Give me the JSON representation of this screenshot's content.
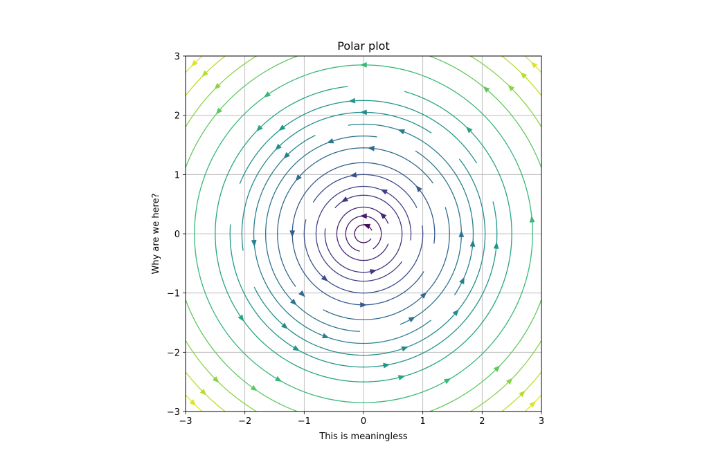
{
  "chart_data": {
    "type": "streamplot",
    "title": "Polar plot",
    "xlabel": "This is meaningless",
    "ylabel": "Why are we here?",
    "xlim": [
      -3,
      3
    ],
    "ylim": [
      -3,
      3
    ],
    "xticks": [
      -3,
      -2,
      -1,
      0,
      1,
      2,
      3
    ],
    "yticks": [
      -3,
      -2,
      -1,
      0,
      1,
      2,
      3
    ],
    "x_tick_labels": [
      "−3",
      "−2",
      "−1",
      "0",
      "1",
      "2",
      "3"
    ],
    "y_tick_labels": [
      "−3",
      "−2",
      "−1",
      "0",
      "1",
      "2",
      "3"
    ],
    "grid": true,
    "colormap": "viridis",
    "color_by": "radius",
    "flow_direction": "counterclockwise",
    "streamlines": [
      {
        "radius": 0.15,
        "gaps": [
          [
            -30,
            20
          ]
        ],
        "arrows": [
          70
        ]
      },
      {
        "radius": 0.3,
        "gaps": [
          [
            260,
            300
          ]
        ],
        "arrows": [
          90
        ]
      },
      {
        "radius": 0.45,
        "gaps": [
          [
            -20,
            20
          ]
        ],
        "arrows": [
          45
        ]
      },
      {
        "radius": 0.65,
        "gaps": [
          [
            140,
            170
          ]
        ],
        "arrows": [
          -75,
          120
        ]
      },
      {
        "radius": 0.8,
        "gaps": [
          [
            -35,
            -10
          ]
        ],
        "arrows": [
          65
        ]
      },
      {
        "radius": 1.0,
        "gaps": [
          [
            10,
            25
          ],
          [
            150,
            165
          ]
        ],
        "arrows": [
          100,
          230
        ]
      },
      {
        "radius": 1.2,
        "gaps": [
          [
            330,
            350
          ]
        ],
        "arrows": [
          40,
          180,
          270
        ]
      },
      {
        "radius": 1.45,
        "gaps": [
          [
            20,
            35
          ],
          [
            220,
            240
          ]
        ],
        "arrows": [
          85,
          140,
          225,
          315
        ]
      },
      {
        "radius": 1.65,
        "gaps": [
          [
            60,
            80
          ],
          [
            270,
            290
          ]
        ],
        "arrows": [
          0,
          110,
          225,
          300
        ]
      },
      {
        "radius": 1.85,
        "gaps": [
          [
            100,
            115
          ],
          [
            310,
            325
          ]
        ],
        "arrows": [
          -5,
          70,
          135,
          185,
          250,
          335
        ]
      },
      {
        "radius": 2.05,
        "gaps": [
          [
            40,
            55
          ],
          [
            190,
            205
          ]
        ],
        "arrows": [
          90,
          135,
          230,
          290,
          320
        ]
      },
      {
        "radius": 2.25,
        "gaps": [
          [
            15,
            30
          ],
          [
            160,
            175
          ]
        ],
        "arrows": [
          -5,
          95,
          128,
          240,
          280
        ]
      },
      {
        "radius": 2.5,
        "gaps": [
          [
            75,
            95
          ]
        ],
        "arrows": [
          45,
          135,
          215,
          285
        ]
      },
      {
        "radius": 2.85,
        "gaps": [],
        "arrows": [
          90,
          5,
          125,
          240,
          300
        ]
      },
      {
        "radius": 3.2,
        "gaps": [],
        "arrows": [
          50,
          140,
          235,
          315
        ]
      },
      {
        "radius": 3.5,
        "gaps": [],
        "arrows": [
          45,
          135,
          225,
          315
        ]
      },
      {
        "radius": 3.8,
        "gaps": [],
        "arrows": [
          45,
          135,
          225,
          315
        ]
      },
      {
        "radius": 4.05,
        "gaps": [],
        "arrows": [
          45,
          135,
          225,
          315
        ]
      }
    ]
  }
}
